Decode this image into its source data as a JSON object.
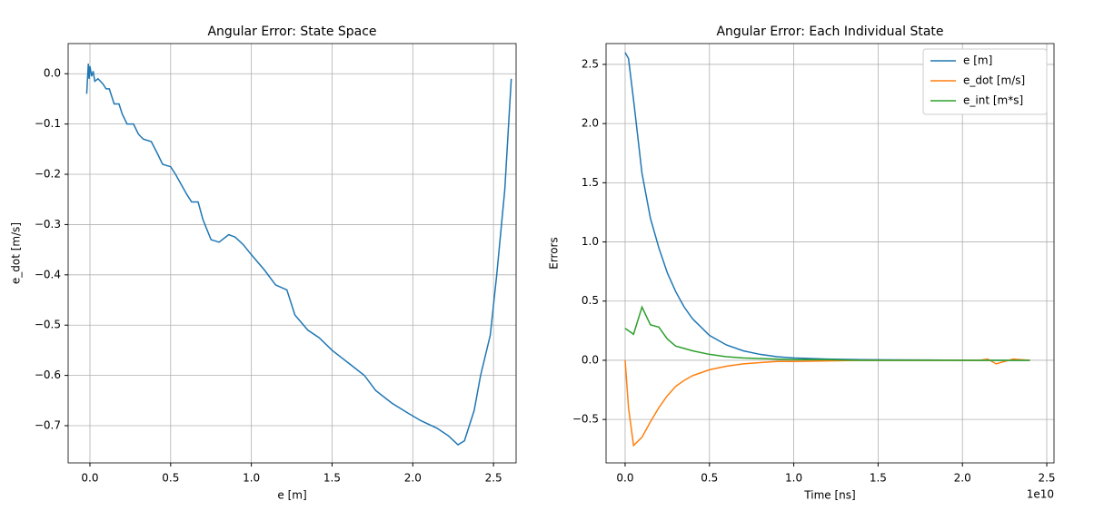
{
  "chart_data": [
    {
      "type": "line",
      "title": "Angular Error: State Space",
      "x_label": "e [m]",
      "y_label": "e_dot [m/s]",
      "x": [
        -0.02,
        -0.01,
        -0.005,
        0,
        0.01,
        0.02,
        0.03,
        0.05,
        0.08,
        0.1,
        0.12,
        0.15,
        0.18,
        0.2,
        0.23,
        0.27,
        0.3,
        0.33,
        0.38,
        0.42,
        0.45,
        0.5,
        0.53,
        0.6,
        0.63,
        0.67,
        0.7,
        0.75,
        0.8,
        0.86,
        0.9,
        0.95,
        1.0,
        1.08,
        1.15,
        1.22,
        1.27,
        1.35,
        1.42,
        1.5,
        1.6,
        1.7,
        1.77,
        1.87,
        1.97,
        2.05,
        2.15,
        2.22,
        2.28,
        2.32,
        2.38,
        2.42,
        2.48,
        2.52,
        2.57,
        2.61
      ],
      "series": [
        {
          "color": "#1f77b4",
          "values": [
            -0.04,
            0.02,
            -0.01,
            0.015,
            -0.005,
            0.005,
            -0.015,
            -0.01,
            -0.02,
            -0.03,
            -0.03,
            -0.06,
            -0.06,
            -0.08,
            -0.1,
            -0.1,
            -0.12,
            -0.13,
            -0.135,
            -0.16,
            -0.18,
            -0.185,
            -0.2,
            -0.24,
            -0.255,
            -0.255,
            -0.29,
            -0.33,
            -0.335,
            -0.32,
            -0.325,
            -0.34,
            -0.36,
            -0.39,
            -0.42,
            -0.43,
            -0.48,
            -0.51,
            -0.525,
            -0.55,
            -0.575,
            -0.6,
            -0.63,
            -0.655,
            -0.675,
            -0.69,
            -0.705,
            -0.72,
            -0.738,
            -0.73,
            -0.67,
            -0.6,
            -0.52,
            -0.4,
            -0.23,
            -0.01
          ]
        }
      ],
      "xlim": [
        -0.135,
        2.64
      ],
      "ylim": [
        -0.774,
        0.06
      ],
      "xticks": [
        {
          "value": 0,
          "label": "0.0"
        },
        0.5,
        {
          "value": 1,
          "label": "1.0"
        },
        1.5,
        {
          "value": 2,
          "label": "2.0"
        },
        2.5
      ],
      "yticks": [
        {
          "value": 0,
          "label": "0.0"
        },
        {
          "value": -0.1,
          "label": "−0.1"
        },
        {
          "value": -0.2,
          "label": "−0.2"
        },
        {
          "value": -0.3,
          "label": "−0.3"
        },
        {
          "value": -0.4,
          "label": "−0.4"
        },
        {
          "value": -0.5,
          "label": "−0.5"
        },
        {
          "value": -0.6,
          "label": "−0.6"
        },
        {
          "value": -0.7,
          "label": "−0.7"
        }
      ],
      "grid": true
    },
    {
      "type": "line",
      "title": "Angular Error: Each Individual State",
      "x_label": "Time [ns]",
      "y_label": "Errors",
      "x_offset_label": "1e10",
      "x": [
        0,
        200000000,
        500000000,
        1000000000,
        1500000000,
        2000000000,
        2500000000,
        3000000000,
        3500000000,
        4000000000,
        5000000000,
        6000000000,
        7000000000,
        8000000000,
        9000000000,
        10000000000,
        12000000000,
        14000000000,
        16000000000,
        18000000000,
        20000000000,
        21000000000,
        21500000000,
        22000000000,
        23000000000,
        24000000000
      ],
      "series": [
        {
          "name": "e [m]",
          "color": "#1f77b4",
          "values": [
            2.6,
            2.55,
            2.2,
            1.58,
            1.2,
            0.95,
            0.74,
            0.58,
            0.45,
            0.35,
            0.21,
            0.13,
            0.08,
            0.05,
            0.03,
            0.02,
            0.01,
            0.005,
            0.003,
            0.002,
            0.001,
            0,
            0,
            0,
            0,
            0
          ]
        },
        {
          "name": "e_dot [m/s]",
          "color": "#ff7f0e",
          "values": [
            0,
            -0.4,
            -0.72,
            -0.65,
            -0.52,
            -0.4,
            -0.3,
            -0.22,
            -0.17,
            -0.13,
            -0.08,
            -0.05,
            -0.03,
            -0.02,
            -0.01,
            -0.01,
            -0.005,
            0,
            0,
            0,
            0,
            0,
            0.01,
            -0.03,
            0.01,
            0
          ]
        },
        {
          "name": "e_int [m*s]",
          "color": "#2ca02c",
          "values": [
            0.27,
            0.25,
            0.22,
            0.45,
            0.3,
            0.28,
            0.18,
            0.12,
            0.1,
            0.08,
            0.05,
            0.03,
            0.02,
            0.015,
            0.01,
            0.005,
            0.005,
            0,
            0,
            0,
            0,
            0,
            0,
            0,
            0,
            0
          ]
        }
      ],
      "xlim": [
        -1130000000,
        25430000000
      ],
      "ylim": [
        -0.867,
        2.676
      ],
      "xticks": [
        {
          "value": 0,
          "label": "0.0"
        },
        {
          "value": 5000000000,
          "label": "0.5"
        },
        {
          "value": 10000000000,
          "label": "1.0"
        },
        {
          "value": 15000000000,
          "label": "1.5"
        },
        {
          "value": 20000000000,
          "label": "2.0"
        },
        {
          "value": 25000000000,
          "label": "2.5"
        }
      ],
      "yticks": [
        {
          "value": -0.5,
          "label": "−0.5"
        },
        {
          "value": 0,
          "label": "0.0"
        },
        0.5,
        {
          "value": 1,
          "label": "1.0"
        },
        1.5,
        {
          "value": 2,
          "label": "2.0"
        },
        2.5
      ],
      "grid": true,
      "legend": "upper-right"
    }
  ]
}
